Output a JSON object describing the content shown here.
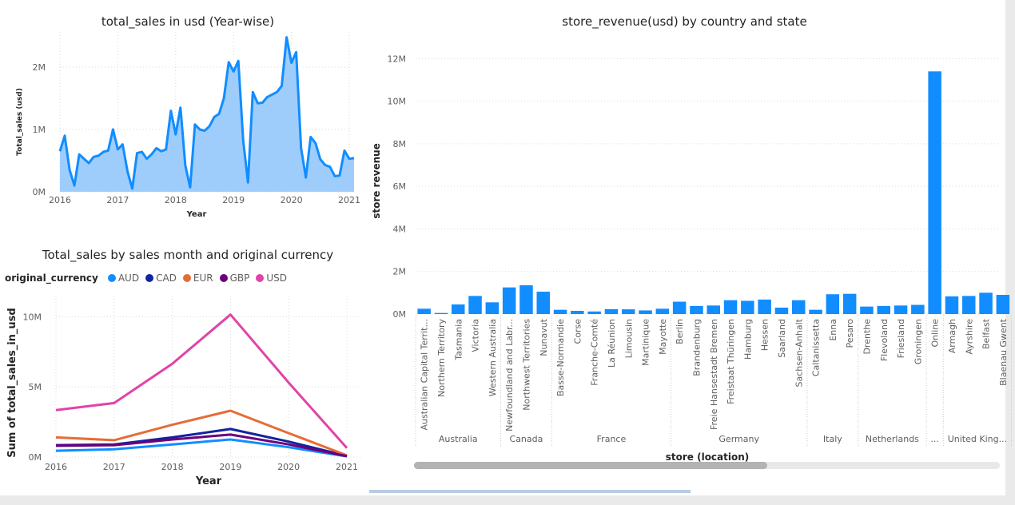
{
  "colors": {
    "area_line": "#118DFF",
    "area_fill": "#9FCDFB",
    "bar": "#118DFF",
    "AUD": "#118DFF",
    "CAD": "#12239E",
    "EUR": "#E66C37",
    "GBP": "#6B007B",
    "USD": "#E044A7"
  },
  "chart_data": [
    {
      "type": "area",
      "title": "total_sales in usd (Year-wise)",
      "xlabel": "Year",
      "ylabel": "Total_sales (usd)",
      "x_ticks": [
        "2016",
        "2017",
        "2018",
        "2019",
        "2020",
        "2021"
      ],
      "y_ticks": [
        "0M",
        "1M",
        "2M"
      ],
      "ylim": [
        0,
        2500000
      ],
      "x_start": 2016,
      "x_step_months": 1,
      "values": [
        650000,
        900000,
        350000,
        100000,
        600000,
        530000,
        460000,
        560000,
        580000,
        640000,
        660000,
        1000000,
        680000,
        760000,
        330000,
        50000,
        620000,
        640000,
        530000,
        600000,
        700000,
        650000,
        680000,
        1300000,
        920000,
        1350000,
        420000,
        70000,
        1080000,
        1000000,
        980000,
        1050000,
        1200000,
        1250000,
        1500000,
        2080000,
        1930000,
        2100000,
        820000,
        150000,
        1600000,
        1420000,
        1430000,
        1520000,
        1560000,
        1600000,
        1700000,
        2480000,
        2070000,
        2240000,
        700000,
        230000,
        880000,
        780000,
        520000,
        430000,
        400000,
        250000,
        260000,
        660000,
        530000,
        540000
      ]
    },
    {
      "type": "line",
      "title": "Total_sales by sales month and original currency",
      "legend_title": "original_currency",
      "xlabel": "Year",
      "ylabel": "Sum of total_sales_in_usd",
      "x": [
        "2016",
        "2017",
        "2018",
        "2019",
        "2020",
        "2021"
      ],
      "y_ticks": [
        "0M",
        "5M",
        "10M"
      ],
      "ylim": [
        0,
        11500000
      ],
      "series": [
        {
          "name": "AUD",
          "values": [
            450000,
            550000,
            900000,
            1250000,
            700000,
            50000
          ]
        },
        {
          "name": "CAD",
          "values": [
            850000,
            900000,
            1400000,
            2000000,
            1100000,
            80000
          ]
        },
        {
          "name": "EUR",
          "values": [
            1400000,
            1200000,
            2300000,
            3300000,
            1700000,
            120000
          ]
        },
        {
          "name": "GBP",
          "values": [
            800000,
            850000,
            1250000,
            1600000,
            900000,
            60000
          ]
        },
        {
          "name": "USD",
          "values": [
            3350000,
            3850000,
            6650000,
            10150000,
            5300000,
            650000
          ]
        }
      ]
    },
    {
      "type": "bar",
      "title": "store_revenue(usd) by country and state",
      "xlabel": "store (location)",
      "ylabel": "store revenue",
      "y_ticks": [
        "0M",
        "2M",
        "4M",
        "6M",
        "8M",
        "10M",
        "12M"
      ],
      "ylim": [
        0,
        12500000
      ],
      "categories": [
        "Australian Capital Territ...",
        "Northern Territory",
        "Tasmania",
        "Victoria",
        "Western Australia",
        "Newfoundland and Labr...",
        "Northwest Territories",
        "Nunavut",
        "Basse-Normandie",
        "Corse",
        "Franche-Comté",
        "La Réunion",
        "Limousin",
        "Martinique",
        "Mayotte",
        "Berlin",
        "Brandenburg",
        "Freie Hansestadt Bremen",
        "Freistaat Thüringen",
        "Hamburg",
        "Hessen",
        "Saarland",
        "Sachsen-Anhalt",
        "Caltanissetta",
        "Enna",
        "Pesaro",
        "Drenthe",
        "Flevoland",
        "Friesland",
        "Groningen",
        "Online",
        "Armagh",
        "Ayrshire",
        "Belfast",
        "Blaenau Gwent"
      ],
      "values": [
        250000,
        50000,
        450000,
        850000,
        550000,
        1250000,
        1350000,
        1050000,
        200000,
        150000,
        120000,
        230000,
        220000,
        170000,
        250000,
        580000,
        380000,
        400000,
        650000,
        620000,
        680000,
        300000,
        650000,
        200000,
        930000,
        950000,
        350000,
        380000,
        400000,
        430000,
        11400000,
        830000,
        850000,
        1000000,
        900000
      ],
      "groups": [
        {
          "label": "Australia",
          "count": 5
        },
        {
          "label": "Canada",
          "count": 3
        },
        {
          "label": "France",
          "count": 7
        },
        {
          "label": "Germany",
          "count": 8
        },
        {
          "label": "Italy",
          "count": 3
        },
        {
          "label": "Netherlands",
          "count": 4
        },
        {
          "label": "...",
          "count": 1
        },
        {
          "label": "United King...",
          "count": 4
        }
      ]
    }
  ]
}
